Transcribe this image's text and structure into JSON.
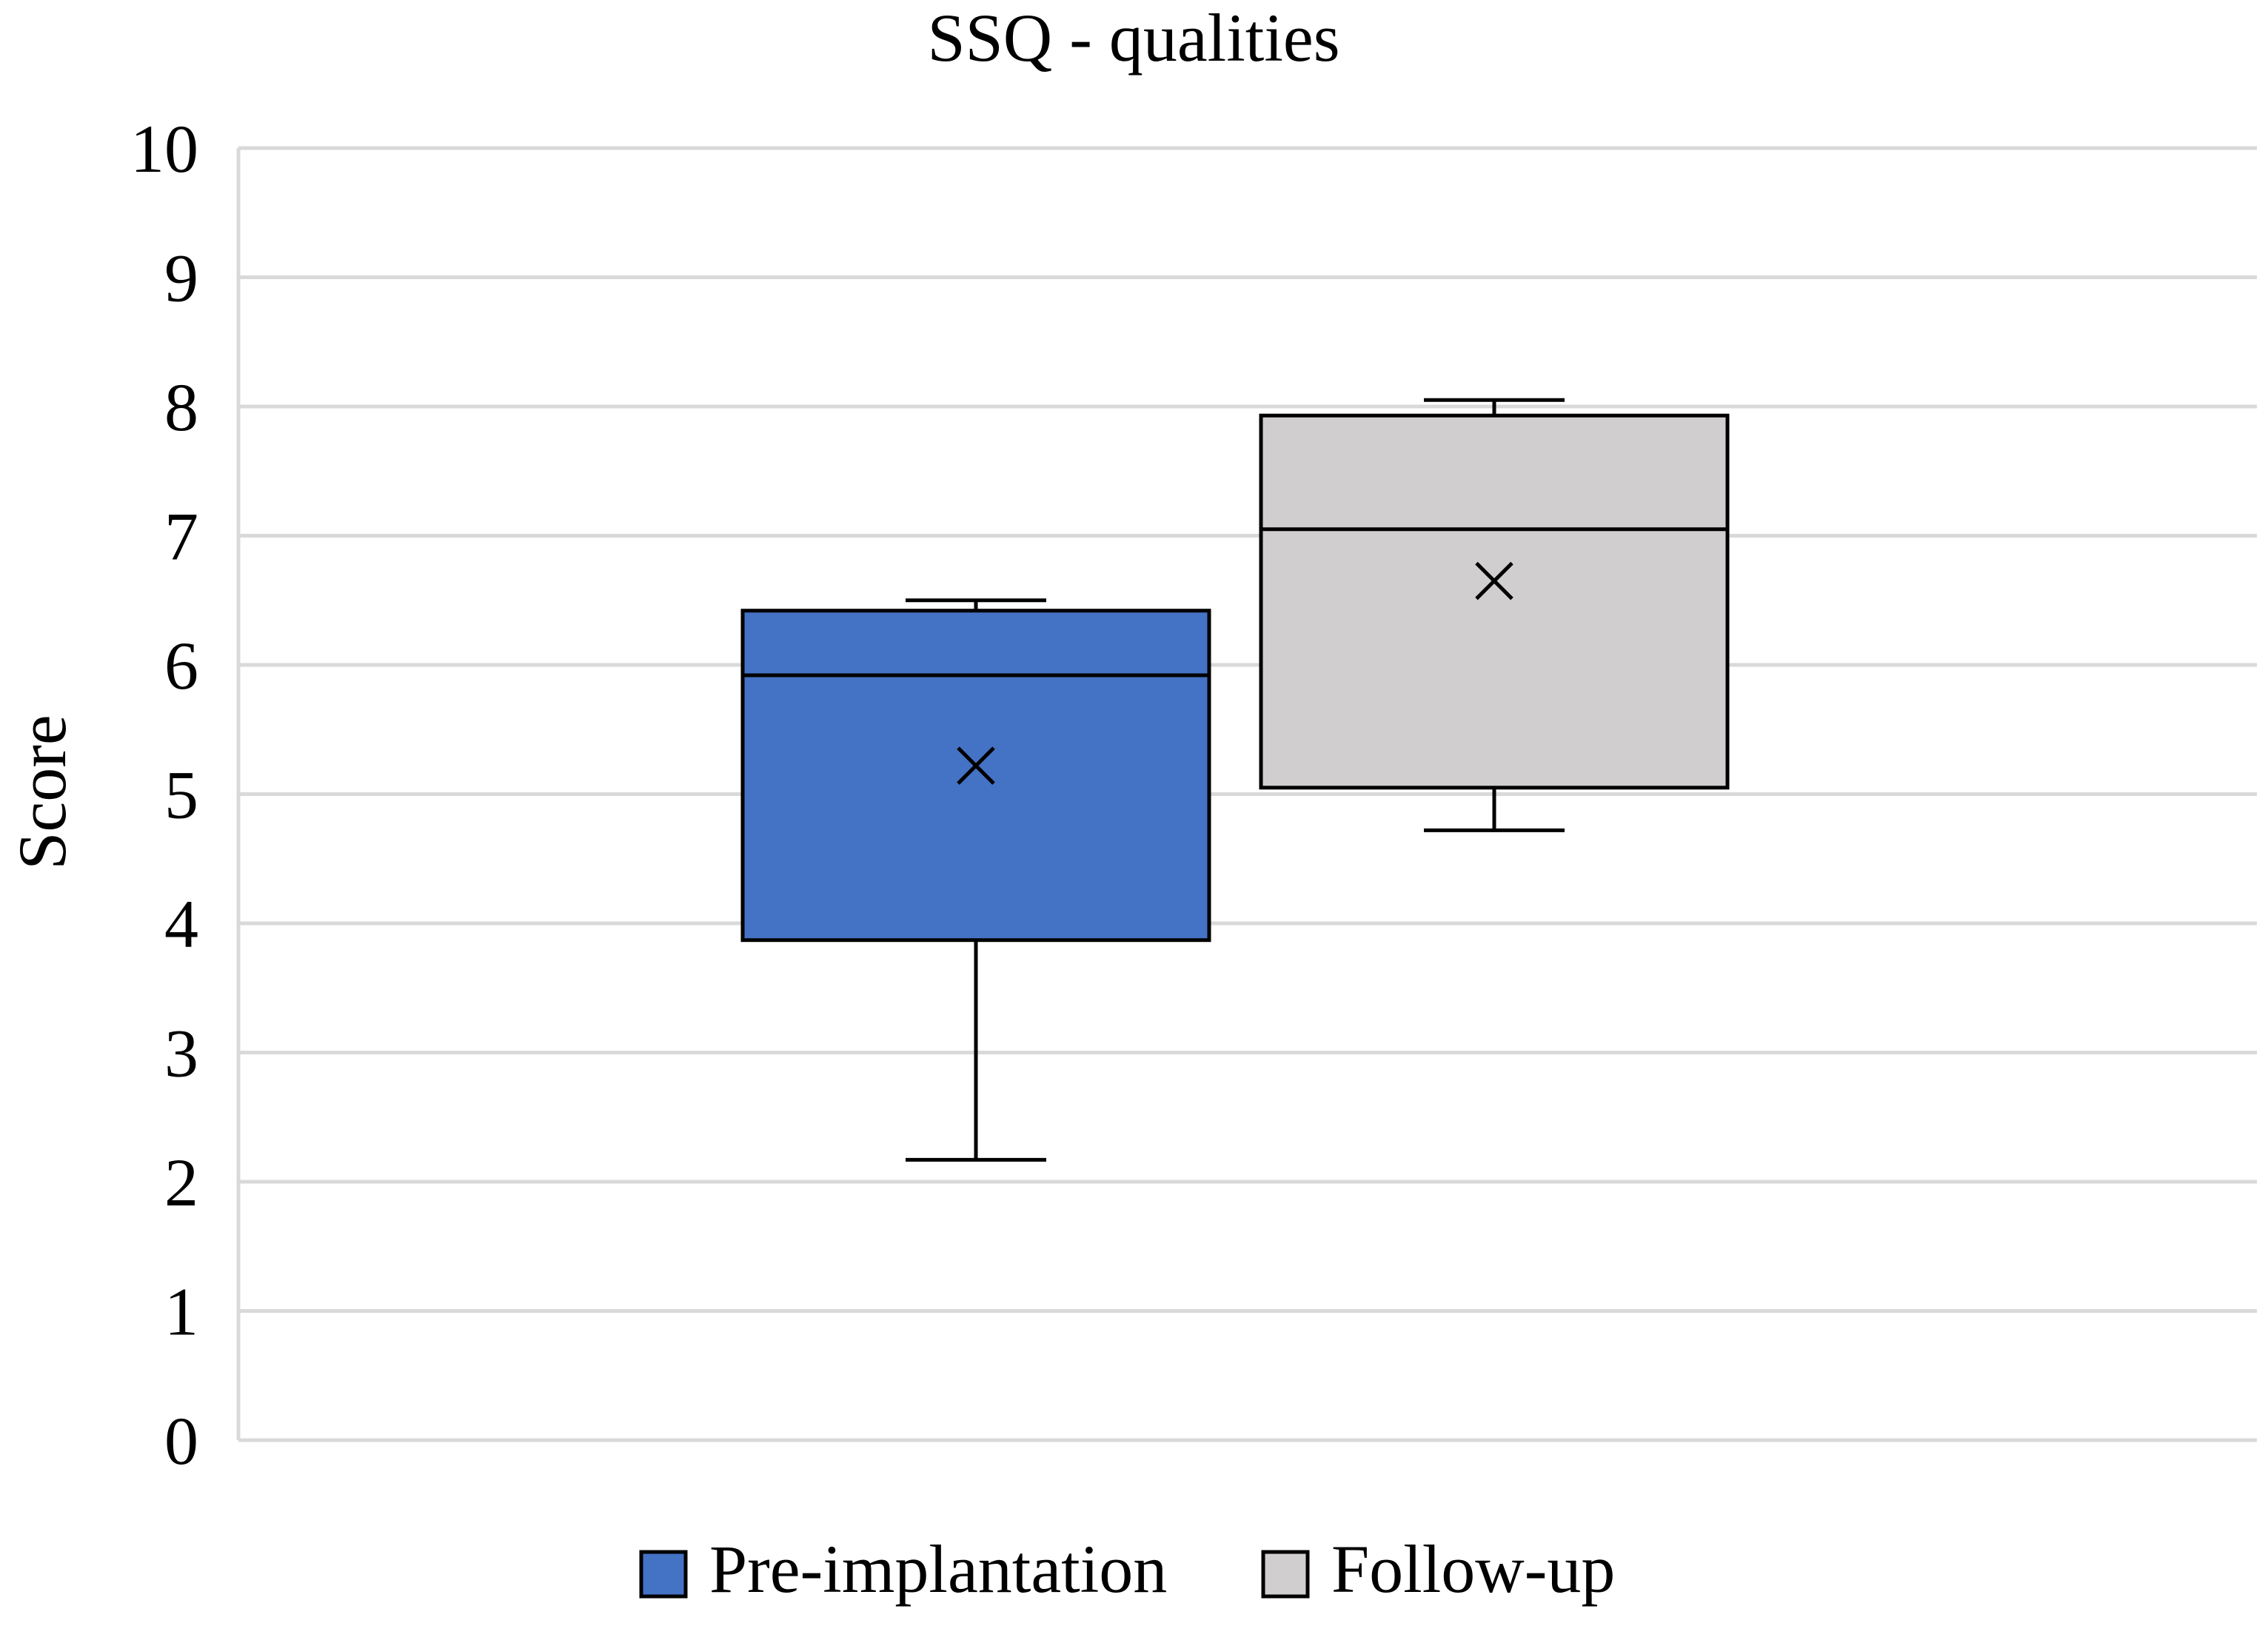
{
  "chart_data": {
    "type": "box",
    "title": "SSQ - qualities",
    "ylabel": "Score",
    "xlabel": "",
    "ylim": [
      0,
      10
    ],
    "yticks": [
      0,
      1,
      2,
      3,
      4,
      5,
      6,
      7,
      8,
      9,
      10
    ],
    "grid": true,
    "legend_position": "bottom",
    "series": [
      {
        "name": "Pre-implantation",
        "color": "#4472c4",
        "min": 2.17,
        "q1": 3.87,
        "median": 5.92,
        "q3": 6.42,
        "max": 6.5,
        "mean": 5.22
      },
      {
        "name": "Follow-up",
        "color": "#d0cece",
        "min": 4.72,
        "q1": 5.05,
        "median": 7.05,
        "q3": 7.93,
        "max": 8.05,
        "mean": 6.65
      }
    ]
  }
}
